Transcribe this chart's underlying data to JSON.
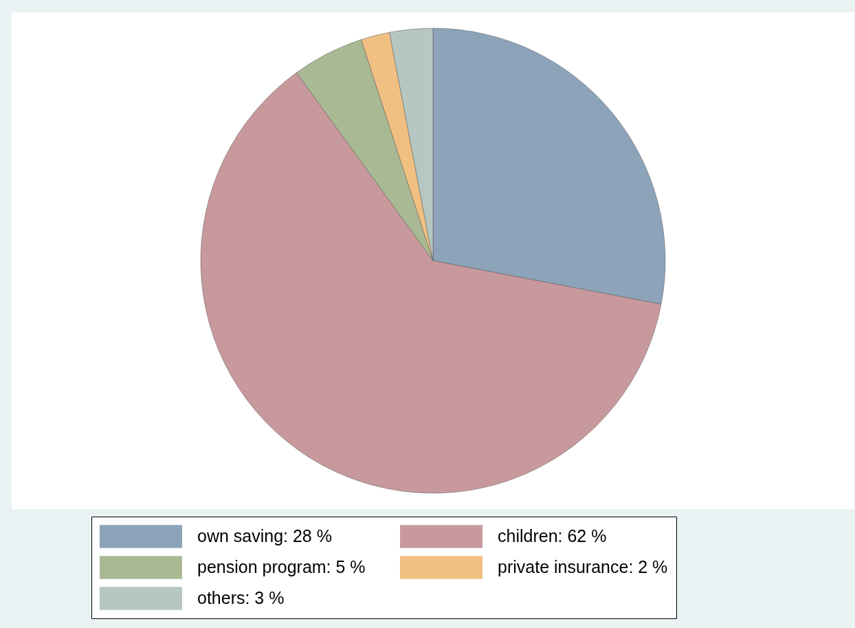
{
  "chart_data": {
    "type": "pie",
    "categories": [
      "own saving: 28 %",
      "children: 62 %",
      "pension program: 5 %",
      "private insurance: 2 %",
      "others: 3 %"
    ],
    "values": [
      28,
      62,
      5,
      2,
      3
    ],
    "colors": [
      "#8ca3b9",
      "#c8999c",
      "#a9b994",
      "#f0bf82",
      "#b6c7c2"
    ],
    "legend": "bottom"
  }
}
